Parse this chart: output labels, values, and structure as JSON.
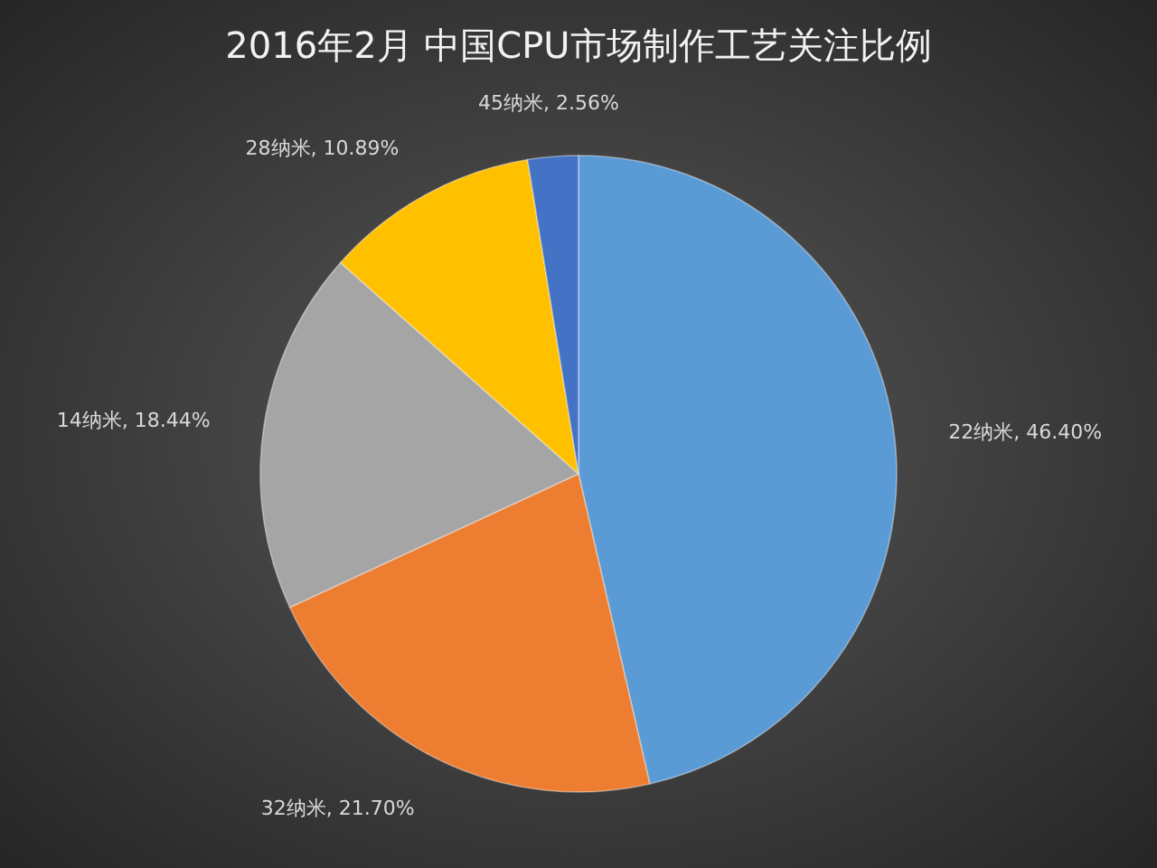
{
  "chart_data": {
    "type": "pie",
    "title": "2016年2月 中国CPU市场制作工艺关注比例",
    "categories": [
      "22纳米",
      "32纳米",
      "14纳米",
      "28纳米",
      "45纳米"
    ],
    "values": [
      46.4,
      21.7,
      18.44,
      10.89,
      2.56
    ],
    "value_labels": [
      "46.40%",
      "21.70%",
      "18.44%",
      "10.89%",
      "2.56%"
    ],
    "colors": [
      "#5b9bd5",
      "#ed7d31",
      "#a5a5a5",
      "#ffc000",
      "#4472c4"
    ],
    "legend": false
  }
}
